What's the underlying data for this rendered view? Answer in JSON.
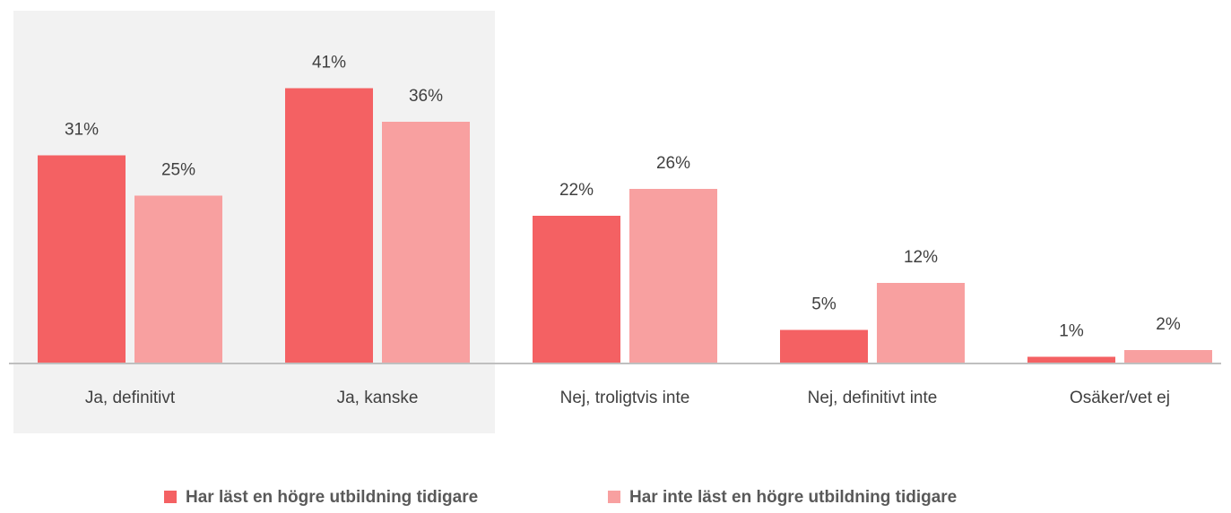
{
  "chart_data": {
    "type": "bar",
    "categories": [
      "Ja, definitivt",
      "Ja, kanske",
      "Nej, troligtvis inte",
      "Nej, definitivt inte",
      "Osäker/vet ej"
    ],
    "series": [
      {
        "name": "Har läst en högre utbildning tidigare",
        "color": "#f46163",
        "values": [
          31,
          41,
          22,
          5,
          1
        ],
        "value_labels": [
          "31%",
          "41%",
          "22%",
          "5%",
          "1%"
        ]
      },
      {
        "name": "Har inte läst en högre utbildning tidigare",
        "color": "#f8a0a0",
        "values": [
          25,
          36,
          26,
          12,
          2
        ],
        "value_labels": [
          "25%",
          "36%",
          "26%",
          "12%",
          "2%"
        ]
      }
    ],
    "legend": "bottom"
  }
}
